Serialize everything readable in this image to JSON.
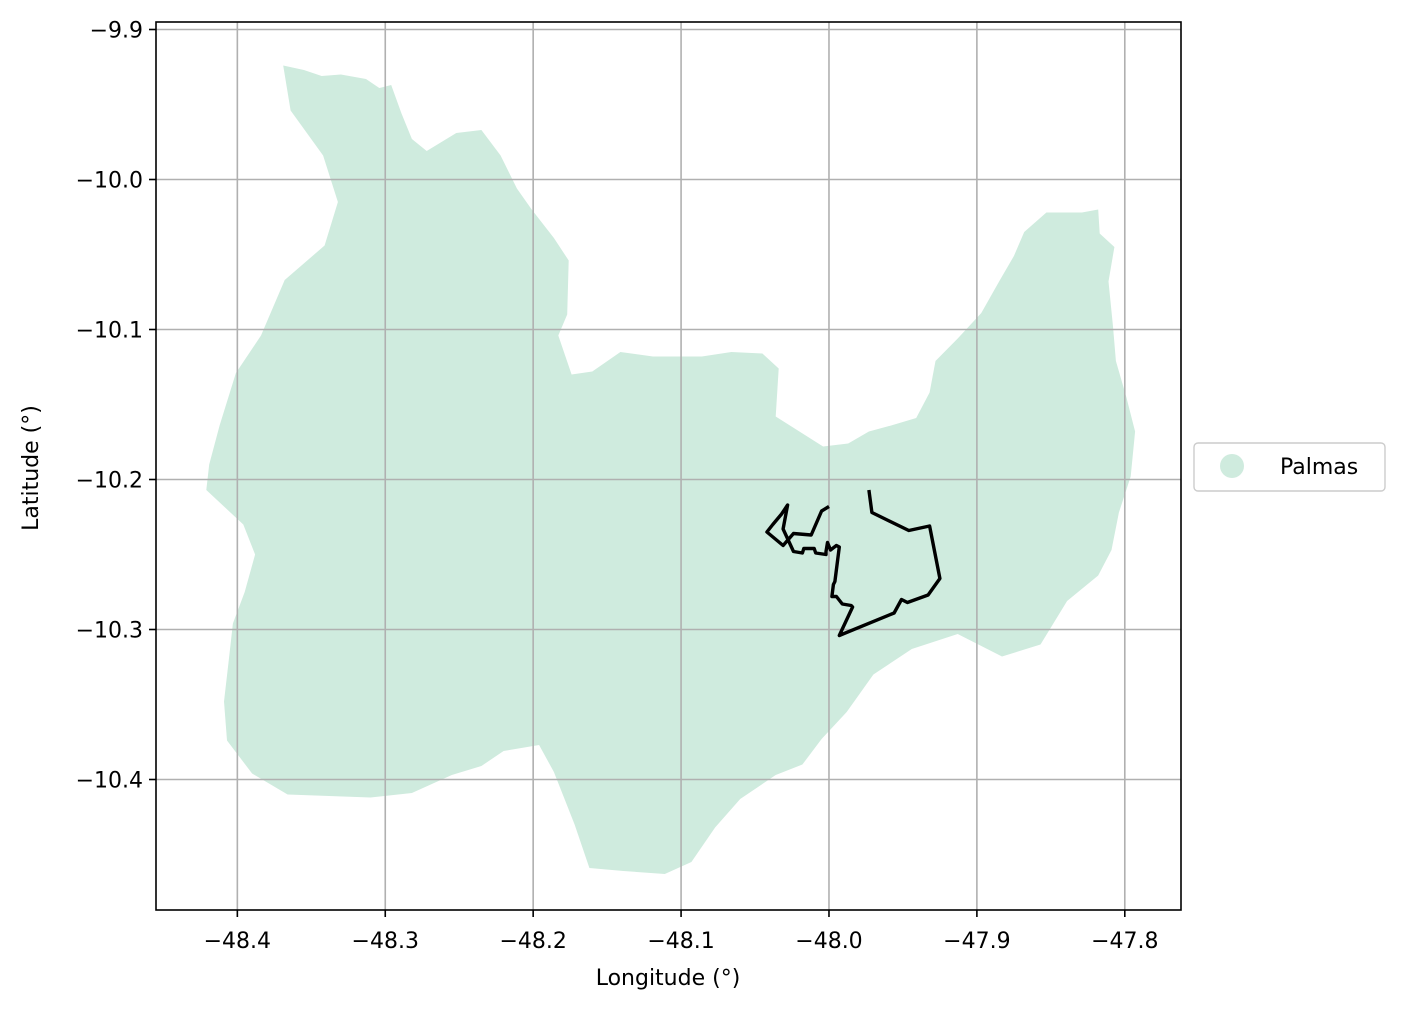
{
  "chart_data": {
    "type": "map",
    "xlabel": "Longitude (°)",
    "ylabel": "Latitude (°)",
    "xlim": [
      -48.455,
      -47.762
    ],
    "ylim": [
      -10.487,
      -9.895
    ],
    "grid": true,
    "xticks": [
      -48.4,
      -48.3,
      -48.2,
      -48.1,
      -48.0,
      -47.9,
      -47.8
    ],
    "xtick_labels": [
      "−48.4",
      "−48.3",
      "−48.2",
      "−48.1",
      "−48.0",
      "−47.9",
      "−47.8"
    ],
    "yticks": [
      -9.9,
      -10.0,
      -10.1,
      -10.2,
      -10.3,
      -10.4
    ],
    "ytick_labels": [
      "−9.9",
      "−10.0",
      "−10.1",
      "−10.2",
      "−10.3",
      "−10.4"
    ],
    "legend": {
      "placement": "right",
      "entries": [
        {
          "label": "Palmas",
          "color": "#cfebde"
        }
      ]
    },
    "region": {
      "name": "Palmas",
      "fill": "#cfebde",
      "coordinates": [
        [
          -48.369,
          -9.924
        ],
        [
          -48.355,
          -9.927
        ],
        [
          -48.343,
          -9.931
        ],
        [
          -48.33,
          -9.93
        ],
        [
          -48.313,
          -9.933
        ],
        [
          -48.304,
          -9.939
        ],
        [
          -48.296,
          -9.937
        ],
        [
          -48.289,
          -9.956
        ],
        [
          -48.282,
          -9.973
        ],
        [
          -48.272,
          -9.981
        ],
        [
          -48.252,
          -9.969
        ],
        [
          -48.235,
          -9.967
        ],
        [
          -48.222,
          -9.984
        ],
        [
          -48.211,
          -10.006
        ],
        [
          -48.201,
          -10.02
        ],
        [
          -48.186,
          -10.039
        ],
        [
          -48.176,
          -10.054
        ],
        [
          -48.177,
          -10.09
        ],
        [
          -48.183,
          -10.104
        ],
        [
          -48.174,
          -10.13
        ],
        [
          -48.16,
          -10.128
        ],
        [
          -48.141,
          -10.115
        ],
        [
          -48.119,
          -10.118
        ],
        [
          -48.086,
          -10.118
        ],
        [
          -48.066,
          -10.115
        ],
        [
          -48.045,
          -10.116
        ],
        [
          -48.034,
          -10.126
        ],
        [
          -48.036,
          -10.158
        ],
        [
          -48.004,
          -10.178
        ],
        [
          -47.987,
          -10.176
        ],
        [
          -47.973,
          -10.168
        ],
        [
          -47.958,
          -10.164
        ],
        [
          -47.941,
          -10.159
        ],
        [
          -47.932,
          -10.142
        ],
        [
          -47.928,
          -10.121
        ],
        [
          -47.913,
          -10.106
        ],
        [
          -47.897,
          -10.089
        ],
        [
          -47.885,
          -10.068
        ],
        [
          -47.875,
          -10.051
        ],
        [
          -47.868,
          -10.035
        ],
        [
          -47.853,
          -10.022
        ],
        [
          -47.829,
          -10.022
        ],
        [
          -47.818,
          -10.02
        ],
        [
          -47.817,
          -10.036
        ],
        [
          -47.807,
          -10.045
        ],
        [
          -47.811,
          -10.068
        ],
        [
          -47.808,
          -10.098
        ],
        [
          -47.806,
          -10.121
        ],
        [
          -47.799,
          -10.145
        ],
        [
          -47.793,
          -10.168
        ],
        [
          -47.796,
          -10.198
        ],
        [
          -47.804,
          -10.222
        ],
        [
          -47.809,
          -10.247
        ],
        [
          -47.818,
          -10.264
        ],
        [
          -47.839,
          -10.281
        ],
        [
          -47.857,
          -10.31
        ],
        [
          -47.883,
          -10.318
        ],
        [
          -47.913,
          -10.303
        ],
        [
          -47.944,
          -10.313
        ],
        [
          -47.97,
          -10.33
        ],
        [
          -47.988,
          -10.355
        ],
        [
          -48.005,
          -10.373
        ],
        [
          -48.018,
          -10.39
        ],
        [
          -48.036,
          -10.397
        ],
        [
          -48.06,
          -10.413
        ],
        [
          -48.077,
          -10.432
        ],
        [
          -48.093,
          -10.455
        ],
        [
          -48.111,
          -10.463
        ],
        [
          -48.139,
          -10.461
        ],
        [
          -48.162,
          -10.459
        ],
        [
          -48.172,
          -10.43
        ],
        [
          -48.186,
          -10.395
        ],
        [
          -48.196,
          -10.377
        ],
        [
          -48.22,
          -10.381
        ],
        [
          -48.235,
          -10.391
        ],
        [
          -48.255,
          -10.397
        ],
        [
          -48.282,
          -10.409
        ],
        [
          -48.31,
          -10.412
        ],
        [
          -48.338,
          -10.411
        ],
        [
          -48.366,
          -10.41
        ],
        [
          -48.39,
          -10.396
        ],
        [
          -48.407,
          -10.374
        ],
        [
          -48.409,
          -10.348
        ],
        [
          -48.406,
          -10.322
        ],
        [
          -48.403,
          -10.296
        ],
        [
          -48.395,
          -10.275
        ],
        [
          -48.388,
          -10.25
        ],
        [
          -48.396,
          -10.23
        ],
        [
          -48.421,
          -10.207
        ],
        [
          -48.419,
          -10.19
        ],
        [
          -48.412,
          -10.164
        ],
        [
          -48.401,
          -10.129
        ],
        [
          -48.384,
          -10.104
        ],
        [
          -48.368,
          -10.067
        ],
        [
          -48.341,
          -10.044
        ],
        [
          -48.332,
          -10.015
        ],
        [
          -48.342,
          -9.984
        ],
        [
          -48.364,
          -9.954
        ]
      ]
    },
    "outline": {
      "stroke": "#000000",
      "coordinates": [
        [
          -47.973,
          -10.207
        ],
        [
          -47.971,
          -10.222
        ],
        [
          -47.946,
          -10.234
        ],
        [
          -47.932,
          -10.231
        ],
        [
          -47.925,
          -10.266
        ],
        [
          -47.933,
          -10.277
        ],
        [
          -47.947,
          -10.282
        ],
        [
          -47.951,
          -10.28
        ],
        [
          -47.956,
          -10.289
        ],
        [
          -47.993,
          -10.304
        ],
        [
          -47.984,
          -10.285
        ],
        [
          -47.985,
          -10.284
        ],
        [
          -47.991,
          -10.283
        ],
        [
          -47.995,
          -10.278
        ],
        [
          -47.998,
          -10.278
        ],
        [
          -47.997,
          -10.27
        ],
        [
          -47.996,
          -10.268
        ],
        [
          -47.993,
          -10.245
        ],
        [
          -47.995,
          -10.244
        ],
        [
          -47.999,
          -10.247
        ],
        [
          -48.001,
          -10.242
        ],
        [
          -48.002,
          -10.248
        ],
        [
          -48.002,
          -10.25
        ],
        [
          -48.009,
          -10.249
        ],
        [
          -48.01,
          -10.246
        ],
        [
          -48.017,
          -10.246
        ],
        [
          -48.018,
          -10.249
        ],
        [
          -48.024,
          -10.248
        ],
        [
          -48.031,
          -10.233
        ],
        [
          -48.028,
          -10.217
        ],
        [
          -48.032,
          -10.223
        ],
        [
          -48.038,
          -10.23
        ],
        [
          -48.042,
          -10.235
        ],
        [
          -48.031,
          -10.244
        ],
        [
          -48.024,
          -10.236
        ],
        [
          -48.012,
          -10.237
        ],
        [
          -48.005,
          -10.221
        ],
        [
          -48.0,
          -10.218
        ]
      ]
    }
  }
}
